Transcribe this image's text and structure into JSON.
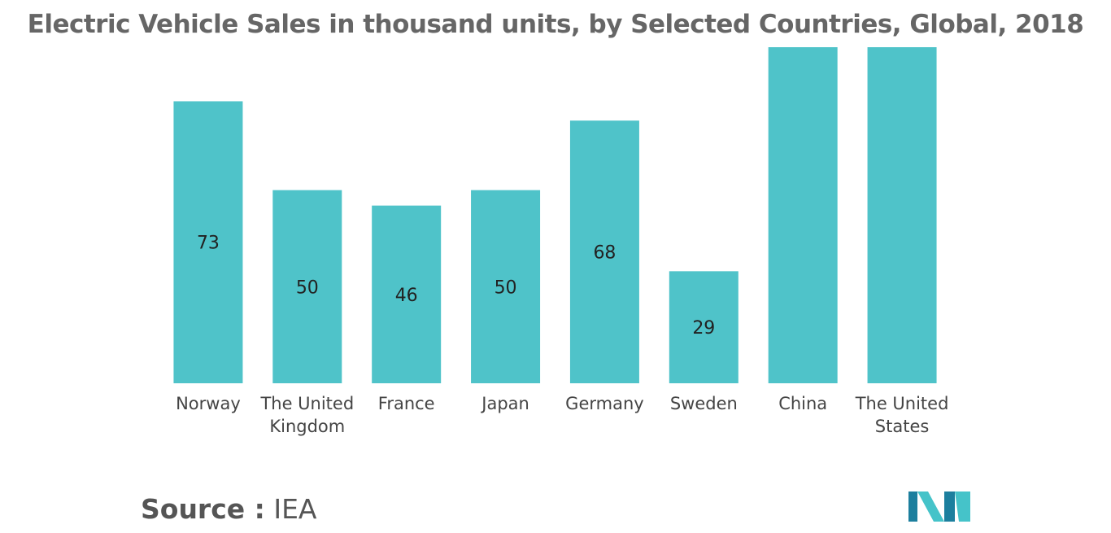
{
  "chart_data": {
    "type": "bar",
    "title": "Electric Vehicle Sales in thousand units, by Selected Countries, Global, 2018",
    "categories": [
      [
        "Norway"
      ],
      [
        "The United",
        "Kingdom"
      ],
      [
        "France"
      ],
      [
        "Japan"
      ],
      [
        "Germany"
      ],
      [
        "Sweden"
      ],
      [
        "China"
      ],
      [
        "The United",
        "States"
      ]
    ],
    "values": [
      73,
      50,
      46,
      50,
      68,
      29,
      null,
      null
    ],
    "data_labels": [
      "73",
      "50",
      "46",
      "50",
      "68",
      "29",
      "",
      ""
    ],
    "bars_truncated_at_top": [
      "China",
      "The United States"
    ],
    "ylim": [
      0,
      87
    ],
    "xlabel": "",
    "ylabel": "",
    "grid": false,
    "legend": "none",
    "bar_color": "#4FC3C9"
  },
  "source": {
    "label": "Source :",
    "value": "IEA"
  },
  "logo": {
    "icon": "mordor-intelligence-logo",
    "colors": [
      "#1C7F9E",
      "#45C3C9"
    ]
  }
}
